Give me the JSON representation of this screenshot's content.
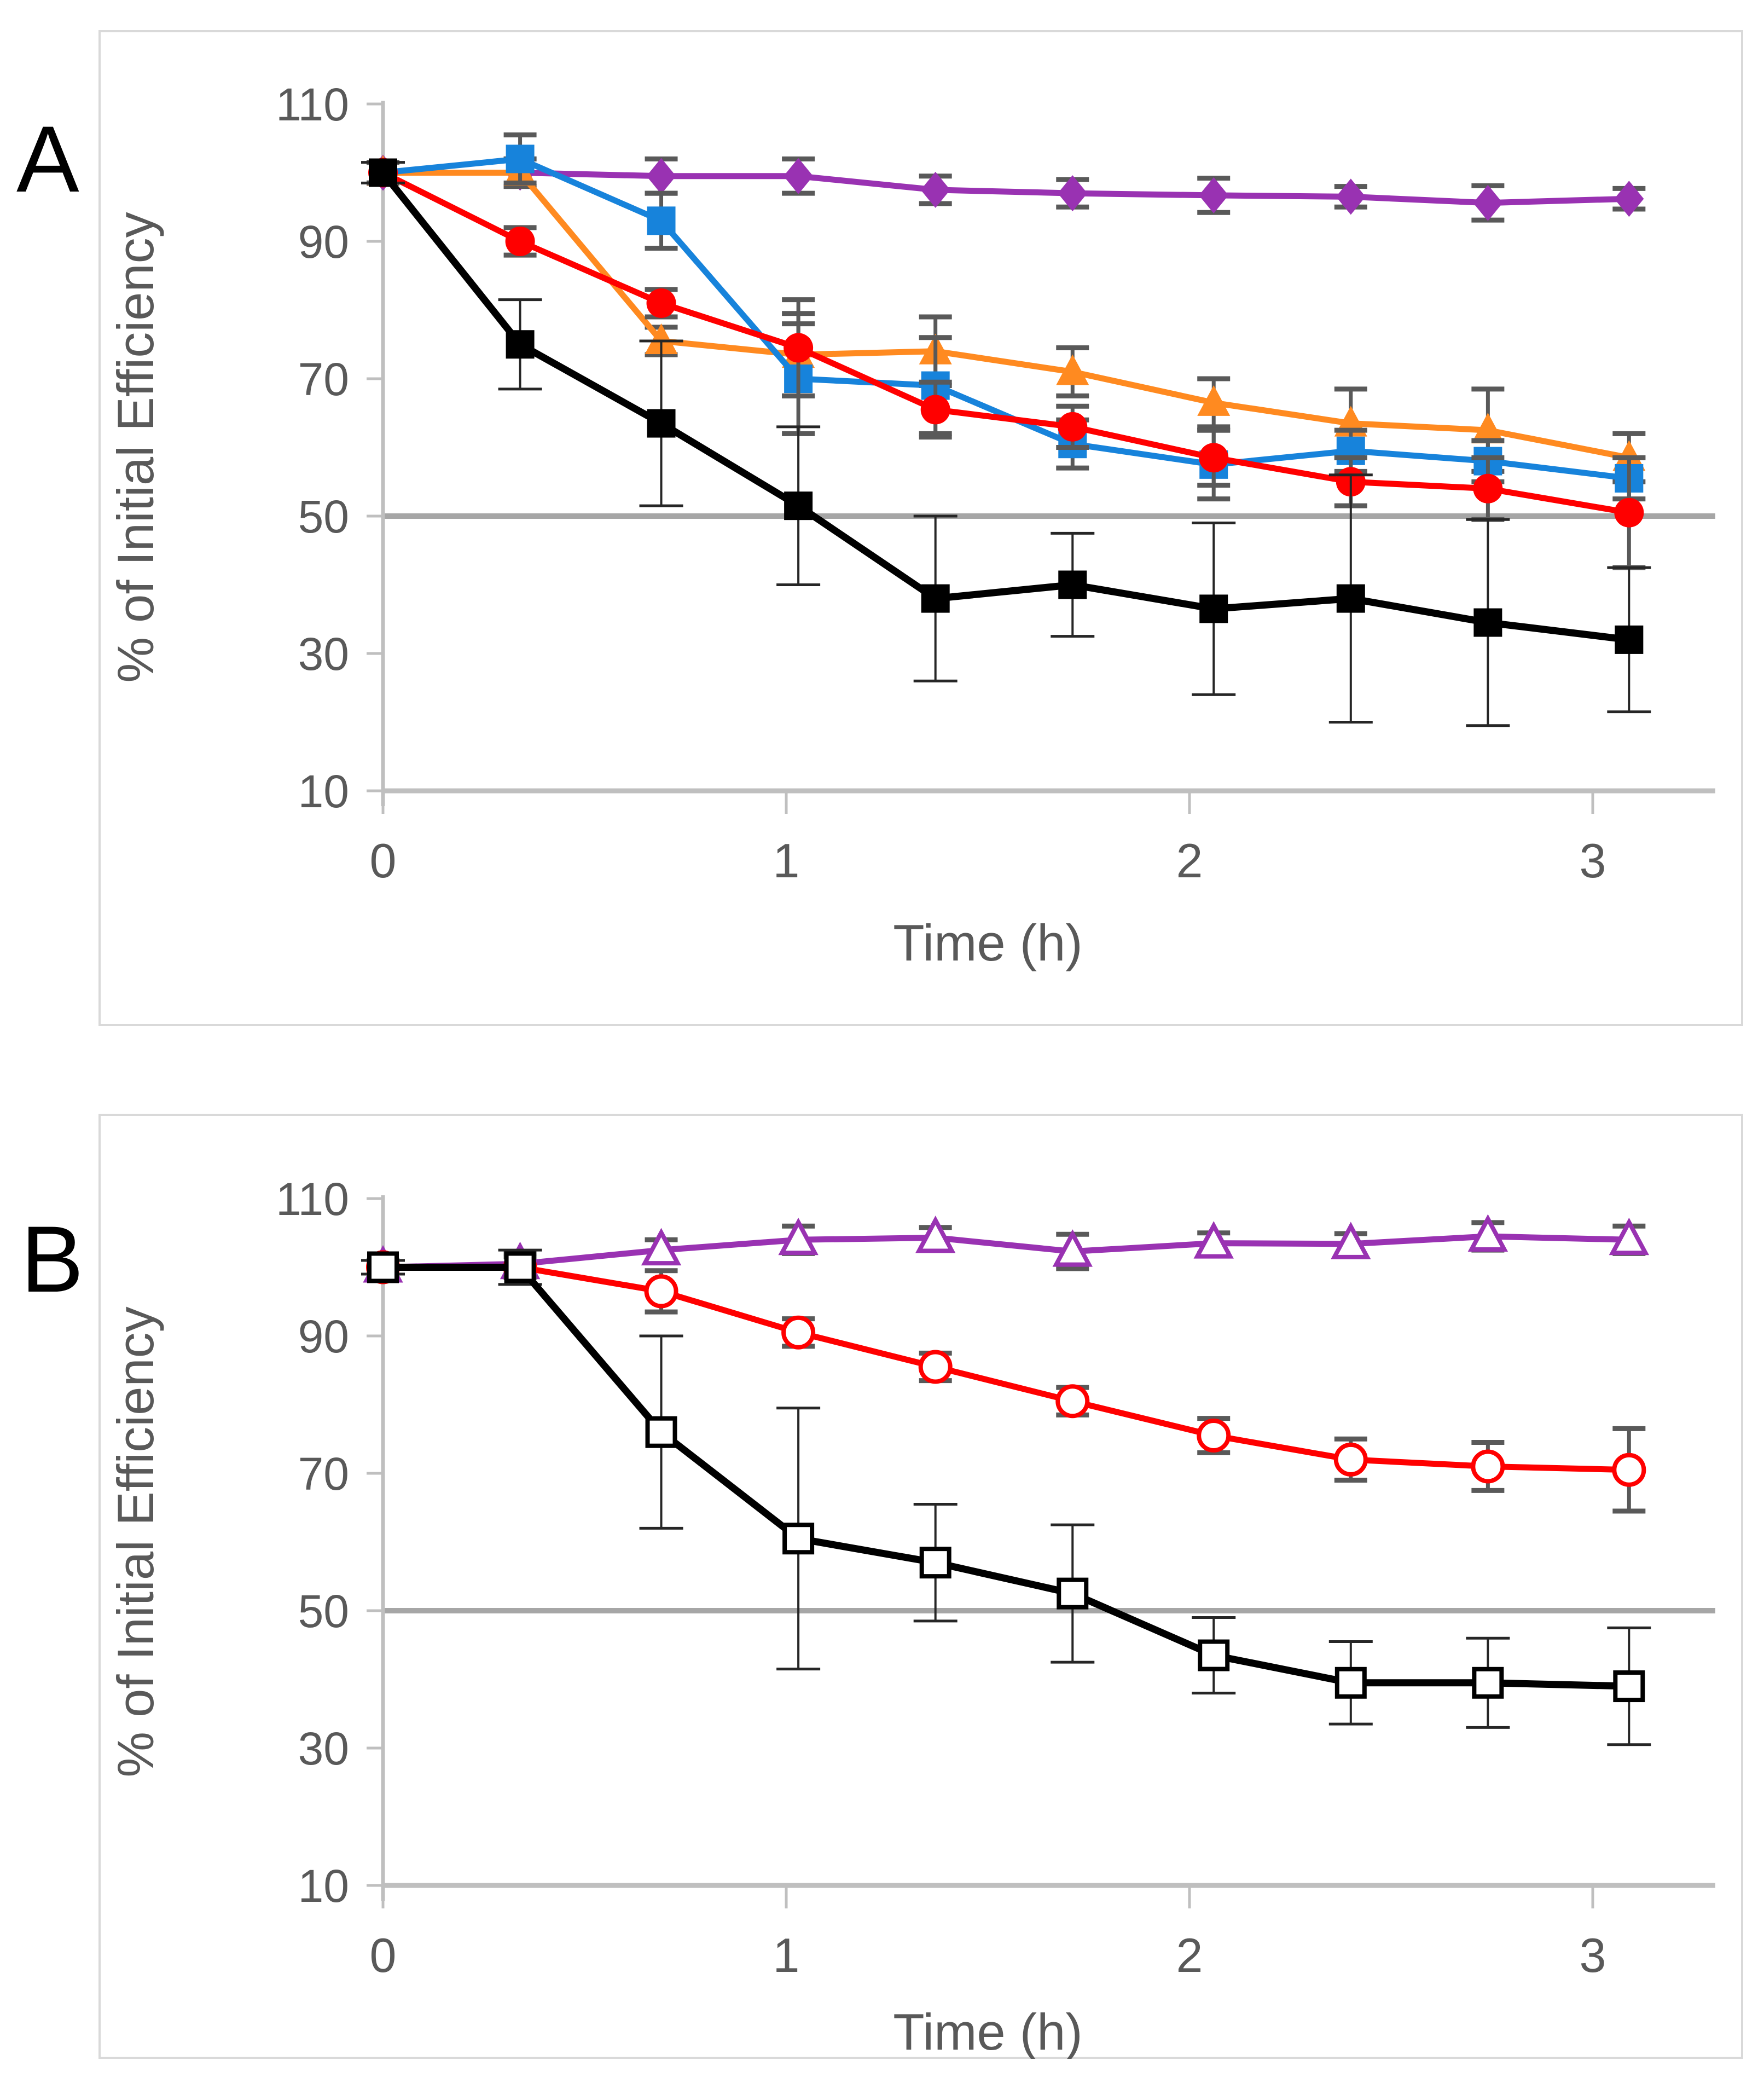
{
  "figure": {
    "background": "#FFFFFF",
    "panel_border_color": "#D9D9D9",
    "axis_color": "#BFBFBF",
    "reference_line_color": "#A6A6A6",
    "tick_label_color": "#595959",
    "error_bar_color": "#595959",
    "panel_letter_color": "#000000"
  },
  "panels": [
    {
      "label": "A"
    },
    {
      "label": "B"
    }
  ],
  "chart_data": [
    {
      "type": "line",
      "panel": "A",
      "title": "",
      "xlabel": "Time (h)",
      "ylabel": "% of Initial Efficiency",
      "xlim": [
        0,
        3.25
      ],
      "ylim": [
        10,
        110
      ],
      "yticks": [
        110,
        90,
        70,
        50,
        30,
        10
      ],
      "xticks": [
        0,
        1,
        2,
        3
      ],
      "reference_lines": [
        50,
        10
      ],
      "grid": "off",
      "legend": "none",
      "x": [
        0,
        0.34,
        0.69,
        1.03,
        1.37,
        1.71,
        2.06,
        2.4,
        2.74,
        3.09
      ],
      "series": [
        {
          "name": "purple-diamond",
          "color": "#9932B2",
          "marker": "diamond",
          "open": false,
          "err_style": "thick",
          "values": [
            100,
            100,
            99.5,
            99.5,
            97.5,
            97,
            96.7,
            96.5,
            95.6,
            96.2
          ],
          "err": [
            1.5,
            2,
            2.5,
            2.5,
            2,
            2,
            2.5,
            1.5,
            2.5,
            1.5
          ]
        },
        {
          "name": "orange-triangle",
          "color": "#FF8A20",
          "marker": "triangle",
          "open": false,
          "err_style": "thick",
          "values": [
            100,
            100,
            75.5,
            73.5,
            74,
            71,
            66.5,
            63.5,
            62.5,
            58.5
          ],
          "err": [
            1.5,
            2,
            2,
            6,
            5,
            3.5,
            3.5,
            5,
            6,
            3.5
          ]
        },
        {
          "name": "blue-square",
          "color": "#1783DB",
          "marker": "square",
          "open": false,
          "err_style": "thick",
          "values": [
            100,
            102,
            93,
            70,
            69,
            60.5,
            57.5,
            59.5,
            58,
            55.5
          ],
          "err": [
            1.5,
            3.5,
            4,
            8,
            7,
            3.5,
            5,
            3,
            3,
            3
          ]
        },
        {
          "name": "red-circle",
          "color": "#FF0000",
          "marker": "circle",
          "open": false,
          "err_style": "thick",
          "values": [
            100,
            90,
            81,
            74.5,
            65.5,
            63,
            58.5,
            55,
            54,
            50.5
          ],
          "err": [
            1.5,
            2,
            2,
            7,
            4,
            3,
            4,
            3.5,
            4.5,
            8
          ]
        },
        {
          "name": "black-square",
          "color": "#000000",
          "marker": "square",
          "open": false,
          "err_style": "thin",
          "values": [
            100,
            75,
            63.5,
            51.5,
            38,
            40,
            36.5,
            38,
            34.5,
            32
          ],
          "err": [
            1.5,
            6.5,
            12,
            11.5,
            12,
            7.5,
            12.5,
            18,
            15,
            10.5
          ]
        }
      ]
    },
    {
      "type": "line",
      "panel": "B",
      "title": "",
      "xlabel": "Time (h)",
      "ylabel": "% of Initial Efficiency",
      "xlim": [
        0,
        3.25
      ],
      "ylim": [
        10,
        110
      ],
      "yticks": [
        110,
        90,
        70,
        50,
        30,
        10
      ],
      "xticks": [
        0,
        1,
        2,
        3
      ],
      "reference_lines": [
        50,
        10
      ],
      "grid": "off",
      "legend": "none",
      "x": [
        0,
        0.34,
        0.69,
        1.03,
        1.37,
        1.71,
        2.06,
        2.4,
        2.74,
        3.09
      ],
      "series": [
        {
          "name": "purple-open-triangle",
          "color": "#9932B2",
          "marker": "triangle",
          "open": true,
          "err_style": "thick",
          "values": [
            100,
            100.5,
            102.5,
            104,
            104.3,
            102.3,
            103.5,
            103.4,
            104.5,
            104
          ],
          "err": [
            1,
            1.5,
            1.5,
            2,
            1.5,
            2.5,
            1.5,
            1.5,
            2,
            2
          ]
        },
        {
          "name": "red-open-circle",
          "color": "#FF0000",
          "marker": "circle",
          "open": true,
          "err_style": "thick",
          "values": [
            100,
            100,
            96.5,
            90.5,
            85.5,
            80.5,
            75.5,
            72,
            71,
            70.5
          ],
          "err": [
            1,
            1.5,
            3,
            2,
            2,
            2,
            2.5,
            3,
            3.5,
            6
          ]
        },
        {
          "name": "black-open-square",
          "color": "#000000",
          "marker": "square",
          "open": true,
          "err_style": "thin",
          "values": [
            100,
            100,
            76,
            60.5,
            57,
            52.5,
            43.5,
            39.5,
            39.5,
            39
          ],
          "err": [
            1,
            2.5,
            14,
            19,
            8.5,
            10,
            5.5,
            6,
            6.5,
            8.5
          ]
        }
      ]
    }
  ]
}
